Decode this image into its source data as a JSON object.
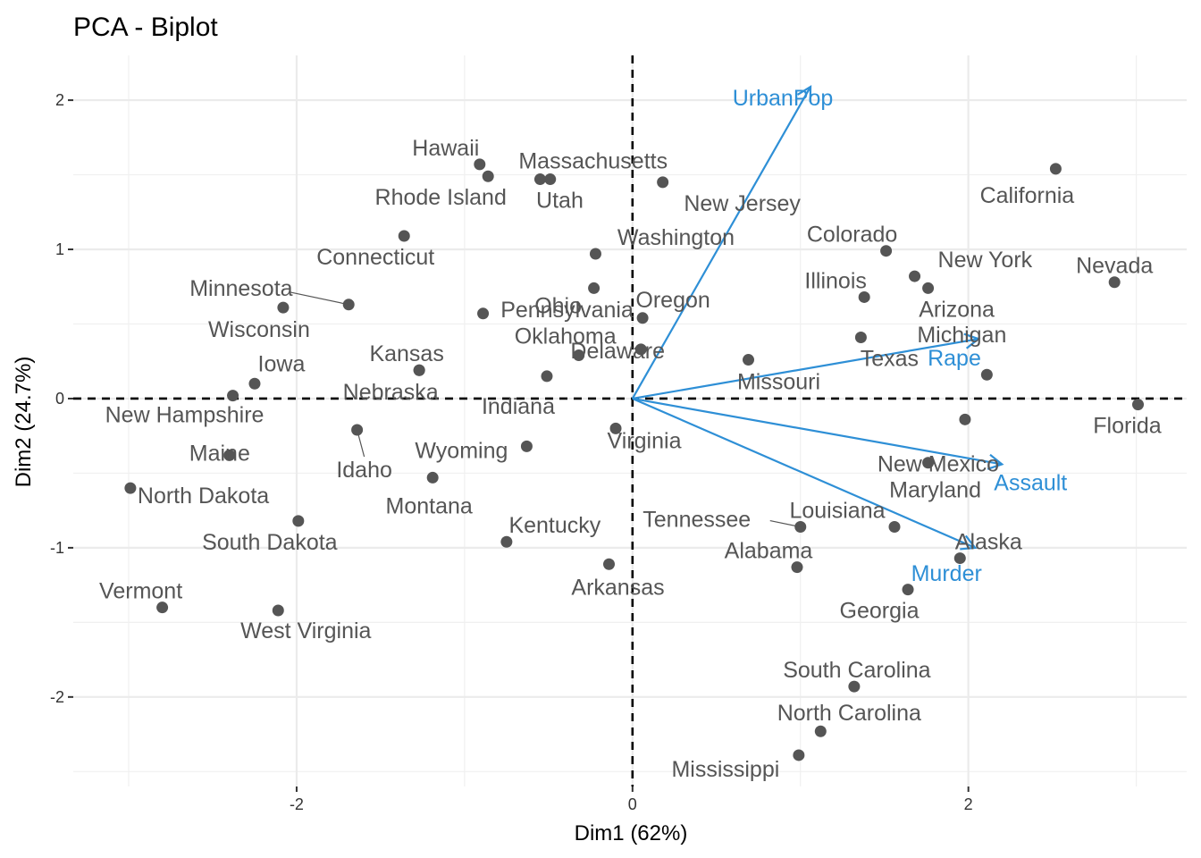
{
  "chart_data": {
    "type": "scatter",
    "title": "PCA - Biplot",
    "xlabel": "Dim1 (62%)",
    "ylabel": "Dim2 (24.7%)",
    "xlim": [
      -3.33,
      3.3
    ],
    "ylim": [
      -2.6,
      2.3
    ],
    "x_ticks": [
      -2,
      0,
      2
    ],
    "y_ticks": [
      -2,
      -1,
      0,
      1,
      2
    ],
    "x_tick_labels": [
      "-2",
      "0",
      "2"
    ],
    "y_tick_labels": [
      "-2",
      "-1",
      "0",
      "1",
      "2"
    ],
    "grid": true,
    "point_color": "#555555",
    "variable_color": "#2E8FD6",
    "points": [
      {
        "name": "Alabama",
        "x": 0.98,
        "y": -1.13
      },
      {
        "name": "Alaska",
        "x": 1.95,
        "y": -1.07
      },
      {
        "name": "Arizona",
        "x": 1.76,
        "y": 0.74
      },
      {
        "name": "Arkansas",
        "x": -0.14,
        "y": -1.11
      },
      {
        "name": "California",
        "x": 2.52,
        "y": 1.54
      },
      {
        "name": "Colorado",
        "x": 1.51,
        "y": 0.99
      },
      {
        "name": "Connecticut",
        "x": -1.36,
        "y": 1.09
      },
      {
        "name": "Delaware",
        "x": 0.05,
        "y": 0.33
      },
      {
        "name": "Florida",
        "x": 3.01,
        "y": -0.04
      },
      {
        "name": "Georgia",
        "x": 1.64,
        "y": -1.28
      },
      {
        "name": "Hawaii",
        "x": -0.91,
        "y": 1.57
      },
      {
        "name": "Idaho",
        "x": -1.64,
        "y": -0.21
      },
      {
        "name": "Illinois",
        "x": 1.38,
        "y": 0.68
      },
      {
        "name": "Indiana",
        "x": -0.51,
        "y": 0.15
      },
      {
        "name": "Iowa",
        "x": -2.25,
        "y": 0.1
      },
      {
        "name": "Kansas",
        "x": -1.27,
        "y": 0.19
      },
      {
        "name": "Kentucky",
        "x": -0.75,
        "y": -0.96
      },
      {
        "name": "Louisiana",
        "x": 1.56,
        "y": -0.86
      },
      {
        "name": "Maine",
        "x": -2.4,
        "y": -0.38
      },
      {
        "name": "Maryland",
        "x": 1.76,
        "y": -0.43
      },
      {
        "name": "Massachusetts",
        "x": -0.49,
        "y": 1.47
      },
      {
        "name": "Michigan",
        "x": 2.11,
        "y": 0.16
      },
      {
        "name": "Minnesota",
        "x": -1.69,
        "y": 0.63
      },
      {
        "name": "Mississippi",
        "x": 0.99,
        "y": -2.39
      },
      {
        "name": "Missouri",
        "x": 0.69,
        "y": 0.26
      },
      {
        "name": "Montana",
        "x": -1.19,
        "y": -0.53
      },
      {
        "name": "Nebraska",
        "x": -1.27,
        "y": 0.19
      },
      {
        "name": "Nevada",
        "x": 2.87,
        "y": 0.78
      },
      {
        "name": "New Hampshire",
        "x": -2.38,
        "y": 0.02
      },
      {
        "name": "New Jersey",
        "x": 0.18,
        "y": 1.45
      },
      {
        "name": "New Mexico",
        "x": 1.98,
        "y": -0.14
      },
      {
        "name": "New York",
        "x": 1.68,
        "y": 0.82
      },
      {
        "name": "North Carolina",
        "x": 1.12,
        "y": -2.23
      },
      {
        "name": "North Dakota",
        "x": -2.99,
        "y": -0.6
      },
      {
        "name": "Ohio",
        "x": -0.23,
        "y": 0.74
      },
      {
        "name": "Oklahoma",
        "x": -0.32,
        "y": 0.29
      },
      {
        "name": "Oregon",
        "x": 0.06,
        "y": 0.54
      },
      {
        "name": "Pennsylvania",
        "x": -0.89,
        "y": 0.57
      },
      {
        "name": "Rhode Island",
        "x": -0.86,
        "y": 1.49
      },
      {
        "name": "South Carolina",
        "x": 1.32,
        "y": -1.93
      },
      {
        "name": "South Dakota",
        "x": -1.99,
        "y": -0.82
      },
      {
        "name": "Tennessee",
        "x": 1.0,
        "y": -0.86
      },
      {
        "name": "Texas",
        "x": 1.36,
        "y": 0.41
      },
      {
        "name": "Utah",
        "x": -0.55,
        "y": 1.47
      },
      {
        "name": "Vermont",
        "x": -2.8,
        "y": -1.4
      },
      {
        "name": "Virginia",
        "x": -0.1,
        "y": -0.2
      },
      {
        "name": "Washington",
        "x": -0.22,
        "y": 0.97
      },
      {
        "name": "West Virginia",
        "x": -2.11,
        "y": -1.42
      },
      {
        "name": "Wisconsin",
        "x": -2.08,
        "y": 0.61
      },
      {
        "name": "Wyoming",
        "x": -0.63,
        "y": -0.32
      }
    ],
    "variables": [
      {
        "name": "UrbanPop",
        "x": 1.06,
        "y": 2.09
      },
      {
        "name": "Rape",
        "x": 2.06,
        "y": 0.4
      },
      {
        "name": "Assault",
        "x": 2.2,
        "y": -0.44
      },
      {
        "name": "Murder",
        "x": 2.04,
        "y": -1.0
      }
    ]
  }
}
